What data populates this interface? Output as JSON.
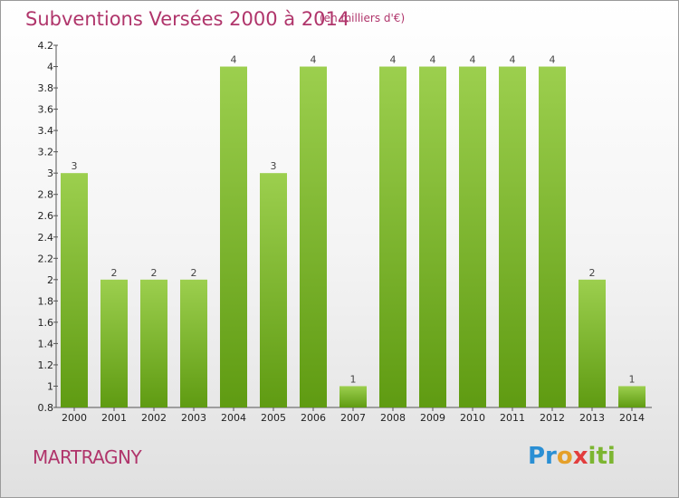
{
  "title": "Subventions Versées 2000 à 2014",
  "unit_label": "(en milliers d'€)",
  "commune": "MARTRAGNY",
  "logo": {
    "p": "Pr",
    "o": "o",
    "x": "x",
    "iti": "iti"
  },
  "colors": {
    "bar_top": "#9ccf4e",
    "bar_bottom": "#5f9b12",
    "title": "#b0356b"
  },
  "chart_data": {
    "type": "bar",
    "categories": [
      "2000",
      "2001",
      "2002",
      "2003",
      "2004",
      "2005",
      "2006",
      "2007",
      "2008",
      "2009",
      "2010",
      "2011",
      "2012",
      "2013",
      "2014"
    ],
    "values": [
      3,
      2,
      2,
      2,
      4,
      3,
      4,
      1,
      4,
      4,
      4,
      4,
      4,
      2,
      1
    ],
    "value_labels": [
      "3",
      "2",
      "2",
      "2",
      "4",
      "3",
      "4",
      "1",
      "4",
      "4",
      "4",
      "4",
      "4",
      "2",
      "1"
    ],
    "y_ticks": [
      0.8,
      1,
      1.2,
      1.4,
      1.6,
      1.8,
      2,
      2.2,
      2.4,
      2.6,
      2.8,
      3,
      3.2,
      3.4,
      3.6,
      3.8,
      4,
      4.2
    ],
    "y_tick_labels": [
      "0.8",
      "1",
      "1.2",
      "1.4",
      "1.6",
      "1.8",
      "2",
      "2.2",
      "2.4",
      "2.6",
      "2.8",
      "3",
      "3.2",
      "3.4",
      "3.6",
      "3.8",
      "4",
      "4.2"
    ],
    "ylim": [
      0.8,
      4.2
    ],
    "grid": false
  }
}
